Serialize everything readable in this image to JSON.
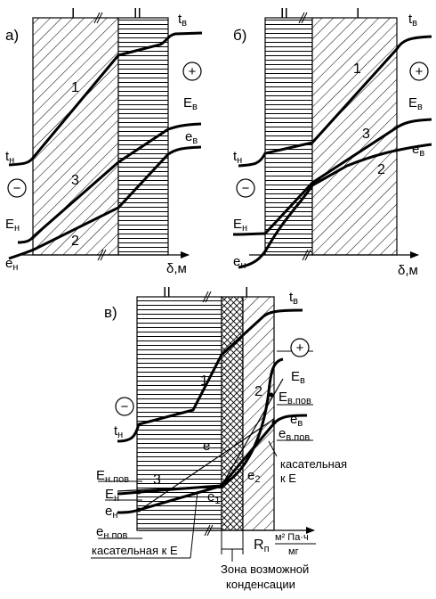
{
  "panel_a": {
    "letter": "а)",
    "layer_I": "I",
    "layer_II": "II",
    "t_v": "t",
    "t_v_sub": "в",
    "t_n": "t",
    "t_n_sub": "н",
    "E_v": "E",
    "E_v_sub": "в",
    "e_v": "e",
    "e_v_sub": "в",
    "E_n": "E",
    "E_n_sub": "н",
    "e_n": "e",
    "e_n_sub": "н",
    "curve_1": "1",
    "curve_2": "2",
    "curve_3": "3",
    "plus": "+",
    "minus": "−",
    "axis_label": "δ,м"
  },
  "panel_b": {
    "letter": "б)",
    "layer_I": "I",
    "layer_II": "II",
    "t_v": "t",
    "t_v_sub": "в",
    "t_n": "t",
    "t_n_sub": "н",
    "E_v": "E",
    "E_v_sub": "в",
    "e_v": "e",
    "e_v_sub": "в",
    "E_n": "E",
    "E_n_sub": "н",
    "e_n": "e",
    "e_n_sub": "н",
    "curve_1": "1",
    "curve_2": "2",
    "curve_3": "3",
    "plus": "+",
    "minus": "−",
    "axis_label": "δ,м"
  },
  "panel_v": {
    "letter": "в)",
    "layer_I": "I",
    "layer_II": "II",
    "t_v": "t",
    "t_v_sub": "в",
    "t_n": "t",
    "t_n_sub": "н",
    "E_v": "E",
    "E_v_sub": "в",
    "E_v_pov": "E",
    "E_v_pov_sub": "в.пов",
    "e_v": "e",
    "e_v_sub": "в",
    "e_v_pov": "e",
    "e_v_pov_sub": "в.пов",
    "E_n_pov": "E",
    "E_n_pov_sub": "н.пов",
    "E_n": "E",
    "E_n_sub": "н",
    "e_n": "e",
    "e_n_sub": "н",
    "e_n_pov": "e",
    "e_n_pov_sub": "н.пов",
    "e": "e",
    "e1": "e",
    "e1_sub": "1",
    "e2": "e",
    "e2_sub": "2",
    "curve_1": "1",
    "curve_2": "2",
    "curve_3": "3",
    "plus": "+",
    "minus": "−",
    "tangent_right": "касательная",
    "tangent_right_2": "к Е",
    "tangent_bottom": "касательная к Е",
    "axis_R": "R",
    "axis_R_sub": "п",
    "axis_unit_num": "м² Па·ч",
    "axis_unit_den": "мг",
    "zone_line1": "Зона возможной",
    "zone_line2": "конденсации"
  }
}
